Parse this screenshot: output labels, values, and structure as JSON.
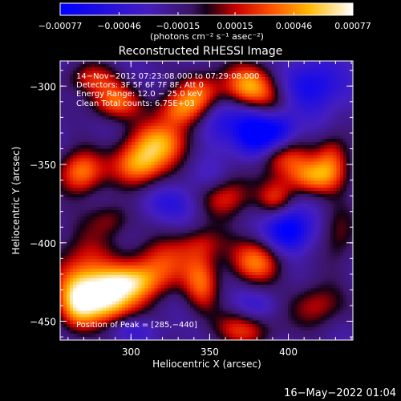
{
  "chart_data": {
    "type": "heatmap",
    "title": "Reconstructed RHESSI Image",
    "xlabel": "Heliocentric X (arcsec)",
    "ylabel": "Heliocentric Y (arcsec)",
    "xlim": [
      255,
      441
    ],
    "ylim": [
      -462,
      -284
    ],
    "x_ticks": [
      300,
      350,
      400
    ],
    "y_ticks": [
      -300,
      -350,
      -400,
      -450
    ],
    "x_tick_labels": [
      "300",
      "350",
      "400"
    ],
    "y_tick_labels": [
      "−300",
      "−350",
      "−400",
      "−450"
    ],
    "colorbar": {
      "min": -0.00077,
      "max": 0.00077,
      "ticks": [
        -0.00077,
        -0.00046,
        -0.00015,
        0.00015,
        0.00046,
        0.00077
      ],
      "tick_labels": [
        "−0.00077",
        "−0.00046",
        "−0.00015",
        "0.00015",
        "0.00046",
        "0.00077"
      ],
      "label": "(photons cm⁻² s⁻¹ asec⁻²)"
    },
    "annotations": [
      "14−Nov−2012 07:23:08.000 to 07:29:08.000",
      "Detectors: 3F 5F 6F 7F 8F, Att 0",
      "Energy Range: 12.0 − 25.0 keV",
      "Clean    Total counts: 6.75E+03"
    ],
    "peak_label": "Position of Peak = [285,−440]",
    "peak": [
      285,
      -440
    ],
    "blobs": [
      {
        "x": 285,
        "y": -438,
        "sx": 14,
        "sy": 10,
        "v": 0.00077
      },
      {
        "x": 300,
        "y": -425,
        "sx": 18,
        "sy": 8,
        "v": 0.0006
      },
      {
        "x": 270,
        "y": -420,
        "sx": 14,
        "sy": 18,
        "v": 0.0005
      },
      {
        "x": 318,
        "y": -412,
        "sx": 14,
        "sy": 10,
        "v": 0.00045
      },
      {
        "x": 345,
        "y": -400,
        "sx": 12,
        "sy": 8,
        "v": 0.0003
      },
      {
        "x": 265,
        "y": -440,
        "sx": 8,
        "sy": 12,
        "v": 0.0004
      },
      {
        "x": 305,
        "y": -350,
        "sx": 12,
        "sy": 10,
        "v": 0.0007
      },
      {
        "x": 320,
        "y": -335,
        "sx": 14,
        "sy": 10,
        "v": 0.0006
      },
      {
        "x": 290,
        "y": -310,
        "sx": 12,
        "sy": 8,
        "v": 0.00055
      },
      {
        "x": 330,
        "y": -315,
        "sx": 10,
        "sy": 8,
        "v": 0.0005
      },
      {
        "x": 345,
        "y": -305,
        "sx": 10,
        "sy": 10,
        "v": 0.00055
      },
      {
        "x": 275,
        "y": -295,
        "sx": 12,
        "sy": 7,
        "v": 0.0004
      },
      {
        "x": 268,
        "y": -355,
        "sx": 10,
        "sy": 10,
        "v": 0.00065
      },
      {
        "x": 287,
        "y": -385,
        "sx": 10,
        "sy": 8,
        "v": 0.0003
      },
      {
        "x": 375,
        "y": -300,
        "sx": 12,
        "sy": 10,
        "v": 0.0007
      },
      {
        "x": 392,
        "y": -315,
        "sx": 10,
        "sy": 10,
        "v": 0.0004
      },
      {
        "x": 395,
        "y": -345,
        "sx": 12,
        "sy": 8,
        "v": 0.0005
      },
      {
        "x": 415,
        "y": -358,
        "sx": 14,
        "sy": 8,
        "v": 0.0006
      },
      {
        "x": 428,
        "y": -345,
        "sx": 8,
        "sy": 10,
        "v": 0.00045
      },
      {
        "x": 360,
        "y": -370,
        "sx": 12,
        "sy": 10,
        "v": 0.0005
      },
      {
        "x": 392,
        "y": -372,
        "sx": 8,
        "sy": 8,
        "v": 0.0004
      },
      {
        "x": 345,
        "y": -425,
        "sx": 8,
        "sy": 14,
        "v": 0.0005
      },
      {
        "x": 380,
        "y": -412,
        "sx": 12,
        "sy": 10,
        "v": 0.0006
      },
      {
        "x": 372,
        "y": -455,
        "sx": 14,
        "sy": 8,
        "v": 0.00045
      },
      {
        "x": 418,
        "y": -440,
        "sx": 12,
        "sy": 10,
        "v": 0.0004
      },
      {
        "x": 432,
        "y": -395,
        "sx": 8,
        "sy": 14,
        "v": 0.0003
      },
      {
        "x": 380,
        "y": -330,
        "sx": 10,
        "sy": 12,
        "v": -0.0007
      },
      {
        "x": 395,
        "y": -325,
        "sx": 8,
        "sy": 10,
        "v": -0.0005
      },
      {
        "x": 400,
        "y": -392,
        "sx": 10,
        "sy": 10,
        "v": -0.00065
      },
      {
        "x": 415,
        "y": -300,
        "sx": 14,
        "sy": 12,
        "v": -0.00045
      },
      {
        "x": 355,
        "y": -322,
        "sx": 10,
        "sy": 12,
        "v": -0.00035
      },
      {
        "x": 325,
        "y": -375,
        "sx": 14,
        "sy": 8,
        "v": -0.00025
      },
      {
        "x": 350,
        "y": -360,
        "sx": 10,
        "sy": 8,
        "v": -0.0002
      },
      {
        "x": 380,
        "y": -440,
        "sx": 10,
        "sy": 8,
        "v": -0.0002
      },
      {
        "x": 300,
        "y": -455,
        "sx": 12,
        "sy": 6,
        "v": -0.0002
      }
    ]
  },
  "footer": {
    "date": "16−May−2022 01:04"
  }
}
